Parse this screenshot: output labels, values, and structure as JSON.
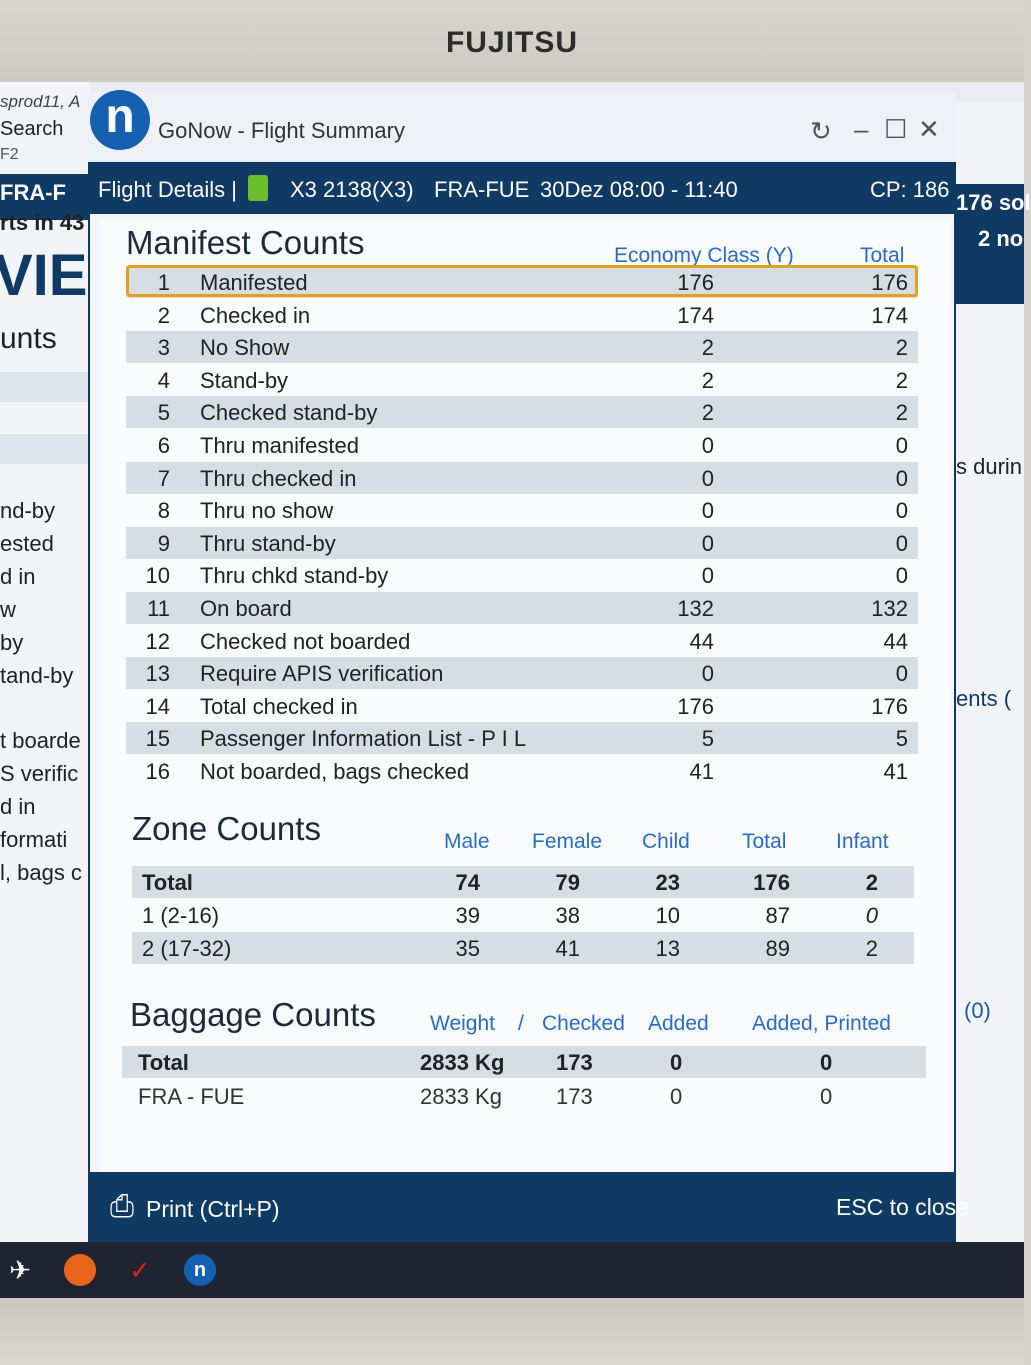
{
  "bezel": {
    "brand": "FUJITSU"
  },
  "background_left": {
    "lines": [
      "sprod11, A",
      "Search",
      "F2",
      "FRA-F",
      "rts in 43",
      "VIE",
      "unts",
      "nd-by",
      "ested",
      "d in",
      "w",
      "by",
      "tand-by",
      "t boarde",
      "S verific",
      "d in",
      "formati",
      "l, bags c"
    ]
  },
  "background_right": {
    "lines": [
      "176 sol",
      "2 no",
      "s durin",
      "ents (",
      "(0)"
    ]
  },
  "window": {
    "title": "GoNow - Flight Summary",
    "logo_letter": "n",
    "refresh_icon": "↻",
    "minimize_icon": "–",
    "maximize_icon": "☐",
    "close_icon": "✕"
  },
  "header": {
    "title": "Flight Details |",
    "flight": "X3 2138(X3)",
    "route": "FRA-FUE",
    "schedule": "30Dez 08:00 - 11:40",
    "cp": "CP: 186"
  },
  "manifest": {
    "title": "Manifest Counts",
    "col_class": "Economy Class (Y)",
    "col_total": "Total",
    "rows": [
      {
        "no": "1",
        "label": "Manifested",
        "y": "176",
        "total": "176"
      },
      {
        "no": "2",
        "label": "Checked in",
        "y": "174",
        "total": "174"
      },
      {
        "no": "3",
        "label": "No Show",
        "y": "2",
        "total": "2"
      },
      {
        "no": "4",
        "label": "Stand-by",
        "y": "2",
        "total": "2"
      },
      {
        "no": "5",
        "label": "Checked stand-by",
        "y": "2",
        "total": "2"
      },
      {
        "no": "6",
        "label": "Thru manifested",
        "y": "0",
        "total": "0"
      },
      {
        "no": "7",
        "label": "Thru checked in",
        "y": "0",
        "total": "0"
      },
      {
        "no": "8",
        "label": "Thru no show",
        "y": "0",
        "total": "0"
      },
      {
        "no": "9",
        "label": "Thru stand-by",
        "y": "0",
        "total": "0"
      },
      {
        "no": "10",
        "label": "Thru chkd stand-by",
        "y": "0",
        "total": "0"
      },
      {
        "no": "11",
        "label": "On board",
        "y": "132",
        "total": "132"
      },
      {
        "no": "12",
        "label": "Checked not boarded",
        "y": "44",
        "total": "44"
      },
      {
        "no": "13",
        "label": "Require APIS verification",
        "y": "0",
        "total": "0"
      },
      {
        "no": "14",
        "label": "Total checked in",
        "y": "176",
        "total": "176"
      },
      {
        "no": "15",
        "label": "Passenger Information List - P I L",
        "y": "5",
        "total": "5"
      },
      {
        "no": "16",
        "label": "Not boarded, bags checked",
        "y": "41",
        "total": "41"
      }
    ]
  },
  "zone": {
    "title": "Zone Counts",
    "cols": [
      "Male",
      "Female",
      "Child",
      "Total",
      "Infant"
    ],
    "rows": [
      {
        "label": "Total",
        "male": "74",
        "female": "79",
        "child": "23",
        "total": "176",
        "infant": "2"
      },
      {
        "label": "1 (2-16)",
        "male": "39",
        "female": "38",
        "child": "10",
        "total": "87",
        "infant": "0"
      },
      {
        "label": "2 (17-32)",
        "male": "35",
        "female": "41",
        "child": "13",
        "total": "89",
        "infant": "2"
      }
    ]
  },
  "baggage": {
    "title": "Baggage Counts",
    "col_weight": "Weight",
    "col_sep": "/",
    "col_checked": "Checked",
    "col_added": "Added",
    "col_added_printed": "Added, Printed",
    "rows": [
      {
        "label": "Total",
        "weight": "2833 Kg",
        "checked": "173",
        "added": "0",
        "printed": "0"
      },
      {
        "label": "FRA - FUE",
        "weight": "2833 Kg",
        "checked": "173",
        "added": "0",
        "printed": "0"
      }
    ]
  },
  "footer": {
    "print_icon": "⎙",
    "print_label": "Print (Ctrl+P)",
    "close_hint": "ESC to close"
  },
  "taskbar": {
    "icons": [
      "airplane-icon",
      "firefox-icon",
      "app-icon",
      "gonow-icon"
    ],
    "gonow_letter": "n"
  }
}
